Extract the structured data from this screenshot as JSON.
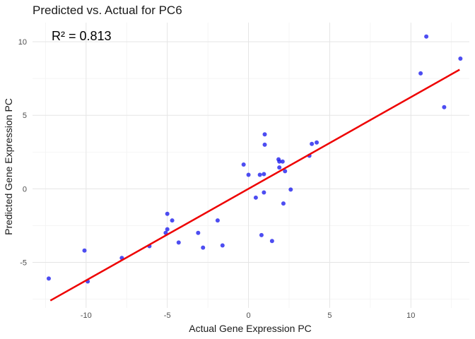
{
  "chart_data": {
    "type": "scatter",
    "title": "Predicted vs. Actual for PC6",
    "xlabel": "Actual Gene Expression PC",
    "ylabel": "Predicted Gene Expression PC",
    "annotation": "R² = 0.813",
    "xlim": [
      -13.3,
      13.6
    ],
    "ylim": [
      -8.1,
      11.3
    ],
    "x_ticks": [
      -10,
      -5,
      0,
      5,
      10
    ],
    "y_ticks": [
      -5,
      0,
      5,
      10
    ],
    "x_tick_labels": [
      "-10",
      "-5",
      "0",
      "5",
      "10"
    ],
    "y_tick_labels": [
      "-5",
      "0",
      "5",
      "10"
    ],
    "grid": true,
    "point_color": "#2020ee",
    "line_color": "#ee0000",
    "fit_line": {
      "x": [
        -12.2,
        13.0
      ],
      "y": [
        -7.6,
        8.1
      ]
    },
    "points": [
      {
        "x": -12.3,
        "y": -6.1
      },
      {
        "x": -10.1,
        "y": -4.2
      },
      {
        "x": -9.9,
        "y": -6.3
      },
      {
        "x": -7.8,
        "y": -4.7
      },
      {
        "x": -6.1,
        "y": -3.9
      },
      {
        "x": -5.1,
        "y": -3.0
      },
      {
        "x": -5.0,
        "y": -1.7
      },
      {
        "x": -5.0,
        "y": -2.75
      },
      {
        "x": -4.7,
        "y": -2.15
      },
      {
        "x": -4.3,
        "y": -3.65
      },
      {
        "x": -3.1,
        "y": -3.0
      },
      {
        "x": -2.8,
        "y": -4.0
      },
      {
        "x": -1.9,
        "y": -2.15
      },
      {
        "x": -1.6,
        "y": -3.85
      },
      {
        "x": -0.3,
        "y": 1.65
      },
      {
        "x": 0.0,
        "y": 0.95
      },
      {
        "x": 0.45,
        "y": -0.6
      },
      {
        "x": 0.7,
        "y": 0.95
      },
      {
        "x": 0.8,
        "y": -3.15
      },
      {
        "x": 0.95,
        "y": -0.25
      },
      {
        "x": 0.95,
        "y": 1.0
      },
      {
        "x": 1.0,
        "y": 3.7
      },
      {
        "x": 1.0,
        "y": 3.0
      },
      {
        "x": 1.45,
        "y": -3.55
      },
      {
        "x": 1.85,
        "y": 2.0
      },
      {
        "x": 1.9,
        "y": 1.45
      },
      {
        "x": 1.9,
        "y": 1.85
      },
      {
        "x": 2.1,
        "y": 1.85
      },
      {
        "x": 2.15,
        "y": -1.0
      },
      {
        "x": 2.25,
        "y": 1.2
      },
      {
        "x": 2.6,
        "y": -0.05
      },
      {
        "x": 3.75,
        "y": 2.25
      },
      {
        "x": 3.9,
        "y": 3.05
      },
      {
        "x": 4.2,
        "y": 3.15
      },
      {
        "x": 10.6,
        "y": 7.85
      },
      {
        "x": 10.95,
        "y": 10.35
      },
      {
        "x": 12.05,
        "y": 5.55
      },
      {
        "x": 13.05,
        "y": 8.85
      }
    ]
  }
}
